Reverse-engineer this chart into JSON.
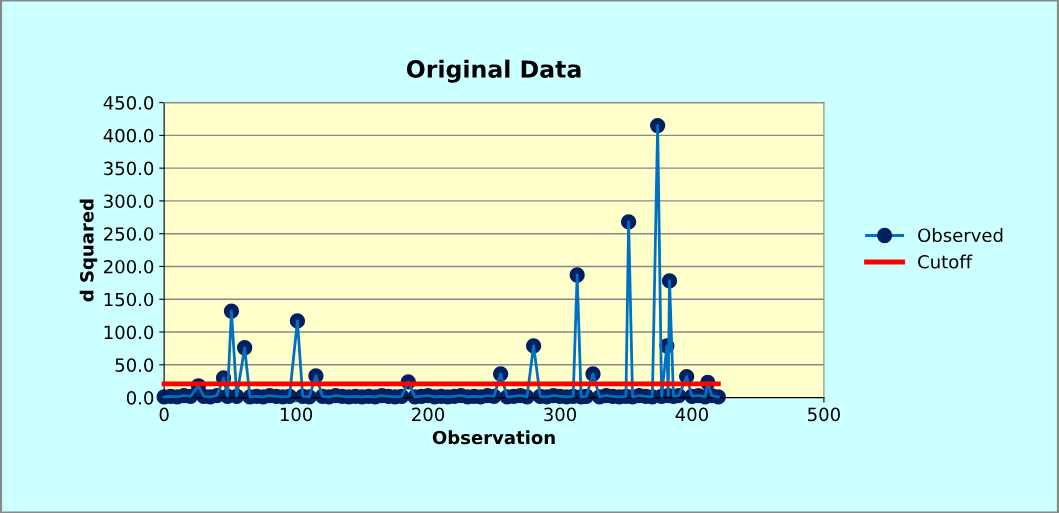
{
  "chart_data": {
    "type": "line",
    "title": "Original Data",
    "xlabel": "Observation",
    "ylabel": "d Squared",
    "xlim": [
      0,
      500
    ],
    "xticks": [
      0,
      100,
      200,
      300,
      400,
      500
    ],
    "ylim": [
      0,
      450
    ],
    "yticks": [
      {
        "value": 0,
        "label": "0.0"
      },
      {
        "value": 50,
        "label": "50.0"
      },
      {
        "value": 100,
        "label": "100.0"
      },
      {
        "value": 150,
        "label": "150.0"
      },
      {
        "value": 200,
        "label": "200.0"
      },
      {
        "value": 250,
        "label": "250.0"
      },
      {
        "value": 300,
        "label": "300.0"
      },
      {
        "value": 350,
        "label": "350.0"
      },
      {
        "value": 400,
        "label": "400.0"
      },
      {
        "value": 450,
        "label": "450.0"
      }
    ],
    "grid": "y",
    "legend": "right",
    "series": [
      {
        "name": "Observed",
        "color": "#0070c0",
        "marker": "circle",
        "x": [
          0,
          5,
          10,
          15,
          20,
          26,
          30,
          35,
          40,
          45,
          48,
          51,
          55,
          61,
          65,
          70,
          75,
          80,
          85,
          90,
          95,
          101,
          105,
          110,
          115,
          120,
          125,
          130,
          135,
          140,
          145,
          150,
          155,
          160,
          165,
          170,
          175,
          180,
          185,
          190,
          195,
          200,
          205,
          210,
          215,
          220,
          225,
          230,
          235,
          240,
          245,
          250,
          255,
          260,
          265,
          270,
          275,
          280,
          285,
          290,
          295,
          300,
          305,
          310,
          313,
          316,
          320,
          325,
          330,
          335,
          340,
          345,
          350,
          352,
          355,
          360,
          365,
          370,
          374,
          377,
          381,
          382,
          383,
          386,
          390,
          396,
          400,
          405,
          410,
          412,
          415,
          420
        ],
        "values": [
          1,
          2,
          1,
          3,
          2,
          18,
          2,
          1,
          3,
          30,
          2,
          132,
          2,
          76,
          1,
          2,
          1,
          3,
          2,
          1,
          2,
          117,
          2,
          1,
          33,
          2,
          1,
          3,
          2,
          1,
          2,
          1,
          2,
          1,
          3,
          2,
          1,
          2,
          24,
          1,
          2,
          3,
          1,
          2,
          1,
          2,
          3,
          1,
          2,
          1,
          3,
          2,
          36,
          1,
          2,
          3,
          1,
          79,
          2,
          1,
          3,
          2,
          1,
          2,
          187,
          1,
          2,
          36,
          1,
          3,
          2,
          1,
          2,
          268,
          1,
          3,
          2,
          1,
          415,
          2,
          79,
          3,
          178,
          2,
          3,
          32,
          2,
          3,
          1,
          23,
          3,
          1
        ]
      },
      {
        "name": "Cutoff",
        "color": "#ff0000",
        "marker": "none",
        "x": [
          0,
          420
        ],
        "values": [
          21,
          21
        ]
      }
    ]
  }
}
